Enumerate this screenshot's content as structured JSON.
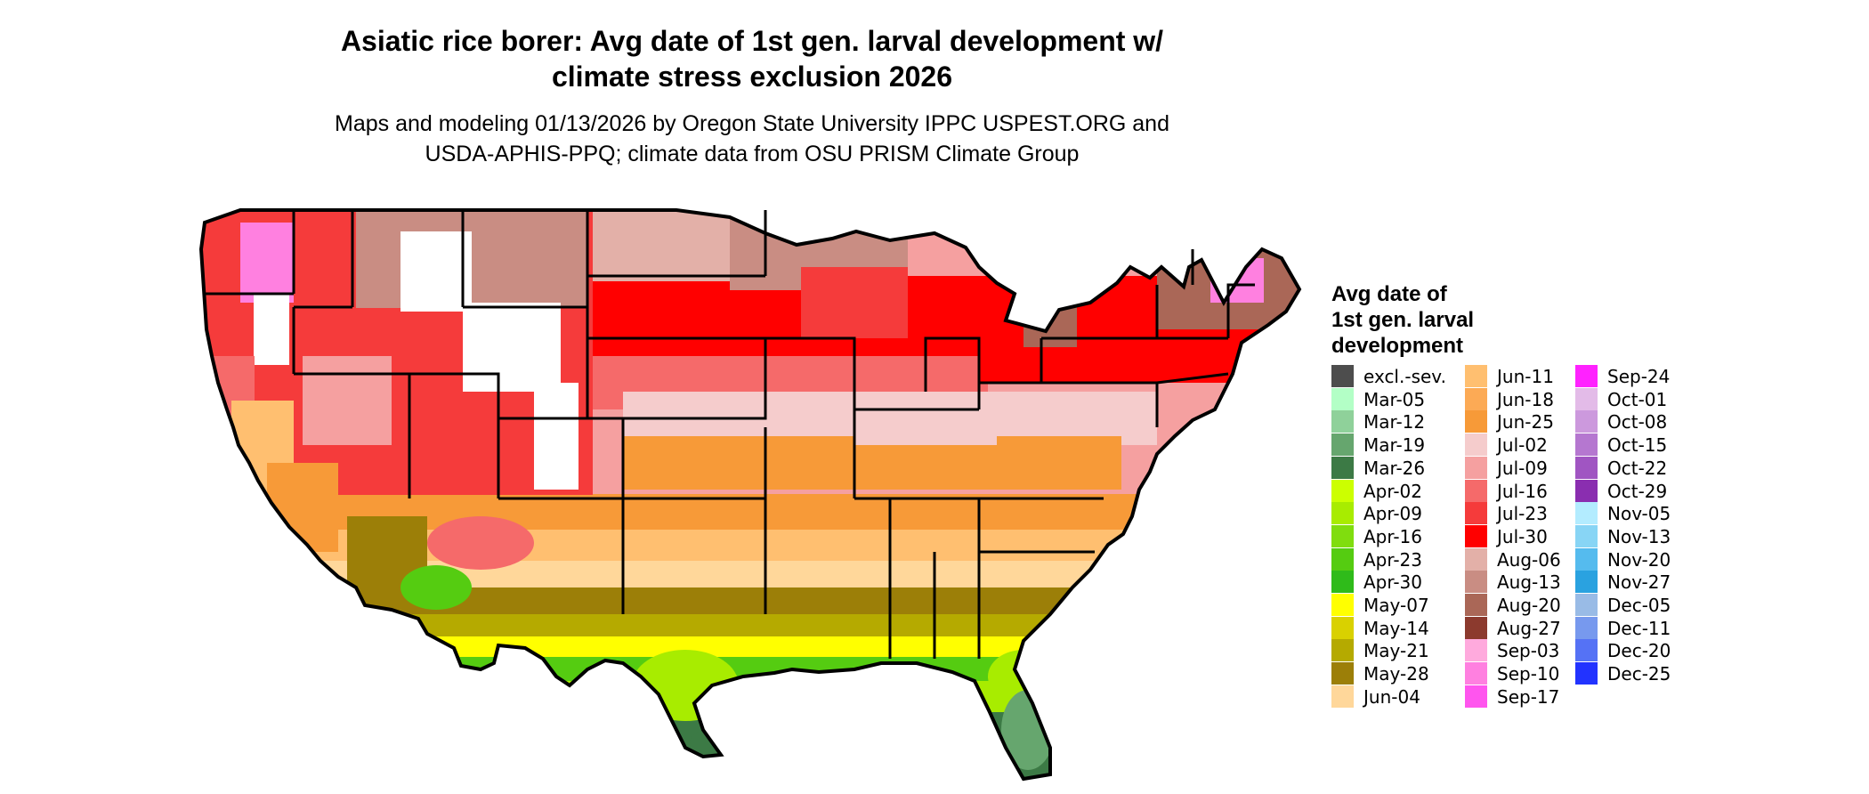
{
  "title_line1": "Asiatic rice borer: Avg date of 1st gen. larval development w/",
  "title_line2": "climate stress exclusion 2026",
  "subtitle_line1": "Maps and modeling 01/13/2026 by Oregon State University IPPC USPEST.ORG and",
  "subtitle_line2": "USDA-APHIS-PPQ; climate data from OSU PRISM Climate Group",
  "legend": {
    "title_lines": [
      "Avg date of",
      "1st gen. larval",
      "development"
    ],
    "columns": [
      [
        {
          "label": "excl.-sev.",
          "color": "#4d4d4d"
        },
        {
          "label": "Mar-05",
          "color": "#b3ffc6"
        },
        {
          "label": "Mar-12",
          "color": "#8fd19a"
        },
        {
          "label": "Mar-19",
          "color": "#66a66e"
        },
        {
          "label": "Mar-26",
          "color": "#3c7a45"
        },
        {
          "label": "Apr-02",
          "color": "#ccff00"
        },
        {
          "label": "Apr-09",
          "color": "#a8ec00"
        },
        {
          "label": "Apr-16",
          "color": "#80dd0e"
        },
        {
          "label": "Apr-23",
          "color": "#55cc11"
        },
        {
          "label": "Apr-30",
          "color": "#2fbb1a"
        },
        {
          "label": "May-07",
          "color": "#ffff00"
        },
        {
          "label": "May-14",
          "color": "#d9d100"
        },
        {
          "label": "May-21",
          "color": "#b5aa00"
        },
        {
          "label": "May-28",
          "color": "#9c7f08"
        },
        {
          "label": "Jun-04",
          "color": "#ffd79a"
        }
      ],
      [
        {
          "label": "Jun-11",
          "color": "#ffbf70"
        },
        {
          "label": "Jun-18",
          "color": "#fcaa55"
        },
        {
          "label": "Jun-25",
          "color": "#f79a38"
        },
        {
          "label": "Jul-02",
          "color": "#f5cccc"
        },
        {
          "label": "Jul-09",
          "color": "#f5a0a0"
        },
        {
          "label": "Jul-16",
          "color": "#f56a6a"
        },
        {
          "label": "Jul-23",
          "color": "#f53b3b"
        },
        {
          "label": "Jul-30",
          "color": "#ff0000"
        },
        {
          "label": "Aug-06",
          "color": "#e3b0a8"
        },
        {
          "label": "Aug-13",
          "color": "#c98d83"
        },
        {
          "label": "Aug-20",
          "color": "#aa6757"
        },
        {
          "label": "Aug-27",
          "color": "#8c3a2e"
        },
        {
          "label": "Sep-03",
          "color": "#ffaadd"
        },
        {
          "label": "Sep-10",
          "color": "#ff80e0"
        },
        {
          "label": "Sep-17",
          "color": "#ff55ee"
        }
      ],
      [
        {
          "label": "Sep-24",
          "color": "#ff22ff"
        },
        {
          "label": "Oct-01",
          "color": "#e3bbe8"
        },
        {
          "label": "Oct-08",
          "color": "#cc99dd"
        },
        {
          "label": "Oct-15",
          "color": "#b577d0"
        },
        {
          "label": "Oct-22",
          "color": "#a055c2"
        },
        {
          "label": "Oct-29",
          "color": "#8a2eb0"
        },
        {
          "label": "Nov-05",
          "color": "#b3ecff"
        },
        {
          "label": "Nov-13",
          "color": "#88d5f5"
        },
        {
          "label": "Nov-20",
          "color": "#55bbee"
        },
        {
          "label": "Nov-27",
          "color": "#2aa2e0"
        },
        {
          "label": "Dec-05",
          "color": "#99bbe6"
        },
        {
          "label": "Dec-11",
          "color": "#7799ee"
        },
        {
          "label": "Dec-20",
          "color": "#5572f5"
        },
        {
          "label": "Dec-25",
          "color": "#2233ff"
        }
      ]
    ]
  }
}
